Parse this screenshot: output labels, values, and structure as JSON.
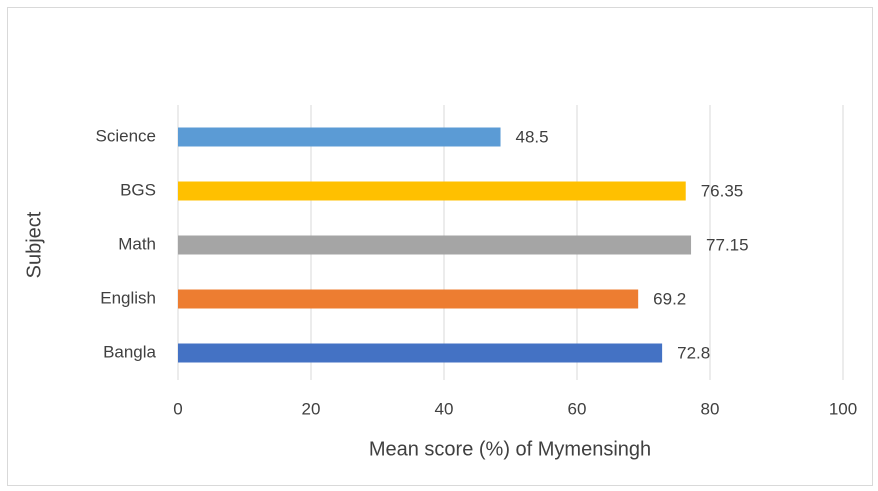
{
  "chart_data": {
    "type": "bar",
    "orientation": "horizontal",
    "categories": [
      "Bangla",
      "English",
      "Math",
      "BGS",
      "Science"
    ],
    "values": [
      72.8,
      69.2,
      77.15,
      76.35,
      48.5
    ],
    "colors": [
      "#4472c4",
      "#ed7d31",
      "#a5a5a5",
      "#ffc000",
      "#5b9bd5"
    ],
    "xlabel": "Mean score (%) of Mymensingh",
    "ylabel": "Subject",
    "xlim": [
      0,
      100
    ],
    "xticks": [
      0,
      20,
      40,
      60,
      80,
      100
    ],
    "grid": true,
    "data_labels": true
  }
}
